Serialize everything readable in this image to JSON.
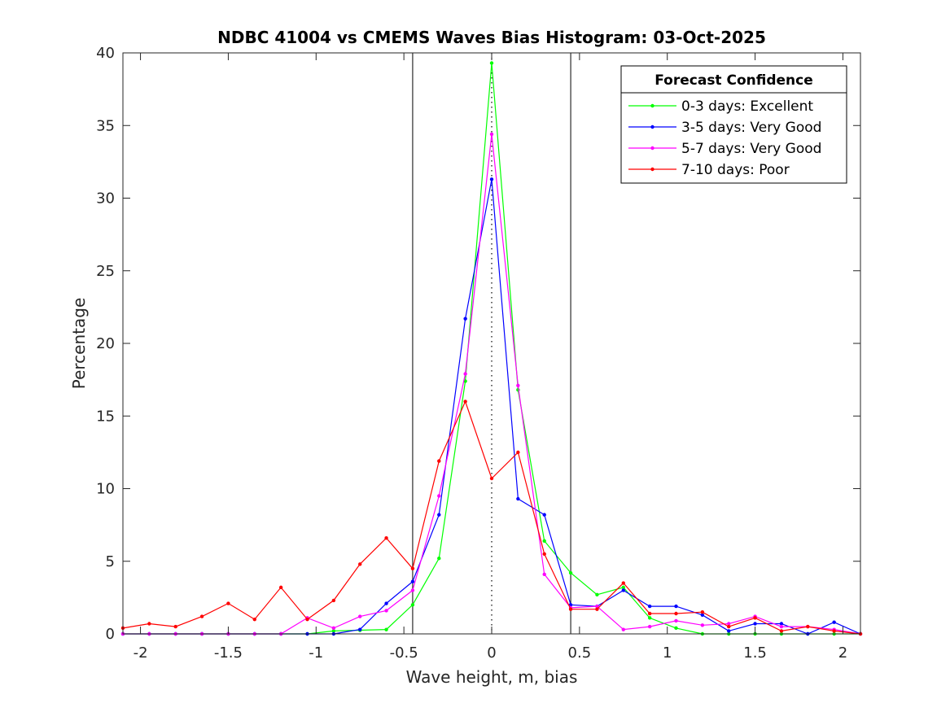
{
  "chart_data": {
    "type": "line",
    "title": "NDBC 41004 vs CMEMS Waves Bias Histogram: 03-Oct-2025",
    "xlabel": "Wave height, m, bias",
    "ylabel": "Percentage",
    "xlim": [
      -2.1,
      2.1
    ],
    "ylim": [
      0,
      40
    ],
    "xticks": [
      -2,
      -1.5,
      -1,
      -0.5,
      0,
      0.5,
      1,
      1.5,
      2
    ],
    "xtick_labels": [
      "-2",
      "-1.5",
      "-1",
      "-0.5",
      "0",
      "0.5",
      "1",
      "1.5",
      "2"
    ],
    "yticks": [
      0,
      5,
      10,
      15,
      20,
      25,
      30,
      35,
      40
    ],
    "ytick_labels": [
      "0",
      "5",
      "10",
      "15",
      "20",
      "25",
      "30",
      "35",
      "40"
    ],
    "reference_lines": [
      -0.45,
      0.45
    ],
    "zero_line": 0,
    "legend": {
      "title": "Forecast Confidence",
      "placement": "top-right"
    },
    "x": [
      -2.1,
      -1.95,
      -1.8,
      -1.65,
      -1.5,
      -1.35,
      -1.2,
      -1.05,
      -0.9,
      -0.75,
      -0.6,
      -0.45,
      -0.3,
      -0.15,
      0,
      0.15,
      0.3,
      0.45,
      0.6,
      0.75,
      0.9,
      1.05,
      1.2,
      1.35,
      1.5,
      1.65,
      1.8,
      1.95,
      2.1
    ],
    "series": [
      {
        "name": "0-3 days: Excellent",
        "color": "#00ff00",
        "values": [
          0,
          0,
          0,
          0,
          0,
          0,
          0,
          0,
          0.2,
          0.25,
          0.3,
          2.0,
          5.2,
          17.4,
          39.3,
          16.8,
          6.4,
          4.2,
          2.7,
          3.2,
          1.1,
          0.4,
          0,
          0,
          0,
          0,
          0,
          0,
          0
        ]
      },
      {
        "name": "3-5 days: Very Good",
        "color": "#0000ff",
        "values": [
          0,
          0,
          0,
          0,
          0,
          0,
          0,
          0,
          0,
          0.3,
          2.1,
          3.6,
          8.2,
          21.7,
          31.3,
          9.3,
          8.2,
          2.0,
          1.9,
          3.0,
          1.9,
          1.9,
          1.3,
          0.2,
          0.7,
          0.7,
          0,
          0.8,
          0
        ]
      },
      {
        "name": "5-7 days: Very Good",
        "color": "#ff00ff",
        "values": [
          0,
          0,
          0,
          0,
          0,
          0,
          0,
          1.1,
          0.4,
          1.2,
          1.6,
          3.0,
          9.5,
          17.9,
          34.4,
          17.1,
          4.1,
          1.8,
          1.9,
          0.3,
          0.5,
          0.9,
          0.6,
          0.7,
          1.2,
          0.5,
          0.5,
          0.3,
          0
        ]
      },
      {
        "name": "7-10 days: Poor",
        "color": "#ff0000",
        "values": [
          0.4,
          0.7,
          0.5,
          1.2,
          2.1,
          1.0,
          3.2,
          1.0,
          2.3,
          4.8,
          6.6,
          4.5,
          11.9,
          16.0,
          10.7,
          12.5,
          5.5,
          1.7,
          1.7,
          3.5,
          1.4,
          1.4,
          1.5,
          0.5,
          1.1,
          0.2,
          0.5,
          0.2,
          0
        ]
      }
    ]
  }
}
